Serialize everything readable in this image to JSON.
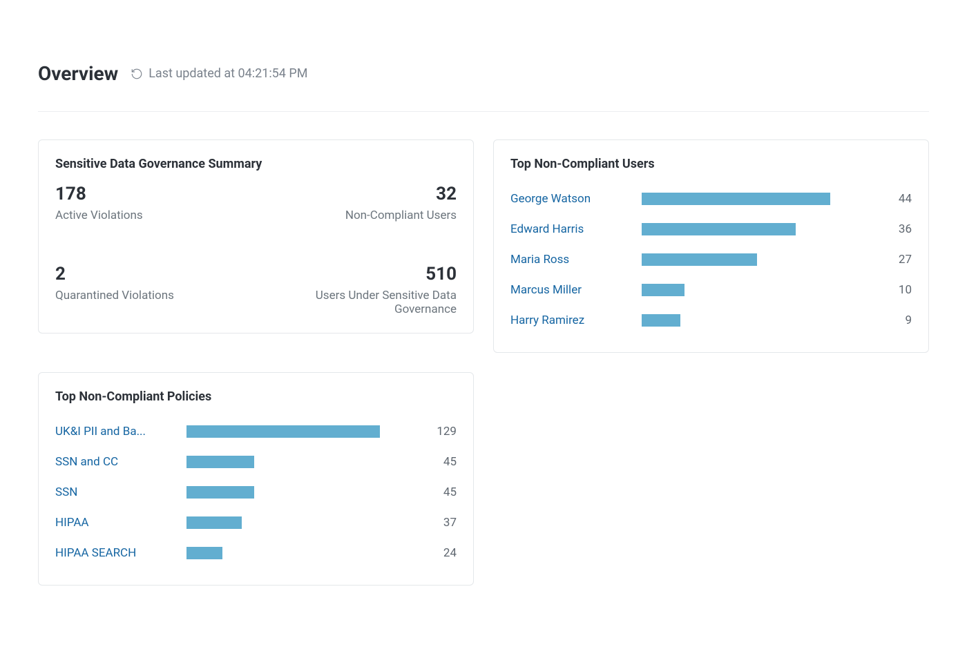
{
  "header": {
    "title": "Overview",
    "last_updated_prefix": "Last updated at ",
    "last_updated_time": "04:21:54 PM"
  },
  "colors": {
    "bar_fill": "#62aed0",
    "link_text": "#1565a2",
    "muted_text": "#6c757d",
    "title_text": "#2c3138",
    "border": "#e4e7ea"
  },
  "summary_card": {
    "title": "Sensitive Data Governance Summary",
    "metrics": [
      {
        "value": "178",
        "label": "Active Violations",
        "align": "left"
      },
      {
        "value": "32",
        "label": "Non-Compliant Users",
        "align": "right"
      },
      {
        "value": "2",
        "label": "Quarantined Violations",
        "align": "left"
      },
      {
        "value": "510",
        "label": "Users Under Sensitive Data Governance",
        "align": "right"
      }
    ]
  },
  "users_card": {
    "title": "Top Non-Compliant Users",
    "type": "horizontal-bar",
    "bar_color": "#62aed0",
    "max_value": 44,
    "max_width_pct": 80,
    "rows": [
      {
        "label": "George Watson",
        "value": 44
      },
      {
        "label": "Edward Harris",
        "value": 36
      },
      {
        "label": "Maria Ross",
        "value": 27
      },
      {
        "label": "Marcus Miller",
        "value": 10
      },
      {
        "label": "Harry Ramirez",
        "value": 9
      }
    ]
  },
  "policies_card": {
    "title": "Top Non-Compliant Policies",
    "type": "horizontal-bar",
    "bar_color": "#62aed0",
    "max_value": 129,
    "max_width_pct": 82,
    "rows": [
      {
        "label": "UK&I PII and Ba...",
        "value": 129
      },
      {
        "label": "SSN and CC",
        "value": 45
      },
      {
        "label": "SSN",
        "value": 45
      },
      {
        "label": "HIPAA",
        "value": 37
      },
      {
        "label": "HIPAA SEARCH",
        "value": 24
      }
    ]
  }
}
